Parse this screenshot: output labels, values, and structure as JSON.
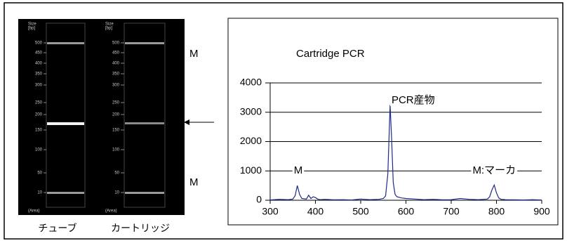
{
  "chart_data": {
    "type": "line",
    "title": "Cartridge PCR",
    "x": [
      300,
      320,
      340,
      350,
      355,
      360,
      365,
      370,
      380,
      385,
      390,
      395,
      400,
      405,
      410,
      420,
      440,
      460,
      480,
      500,
      520,
      540,
      550,
      555,
      560,
      565,
      568,
      572,
      576,
      580,
      590,
      600,
      620,
      640,
      660,
      680,
      700,
      720,
      740,
      760,
      780,
      785,
      790,
      795,
      800,
      805,
      810,
      820,
      840,
      860,
      880,
      900
    ],
    "series": [
      {
        "color": "#1f2a8a",
        "values": [
          10,
          30,
          20,
          40,
          150,
          500,
          200,
          60,
          40,
          170,
          60,
          120,
          90,
          40,
          20,
          30,
          15,
          20,
          10,
          40,
          20,
          30,
          60,
          150,
          900,
          3250,
          2200,
          600,
          200,
          120,
          80,
          60,
          40,
          20,
          30,
          15,
          20,
          60,
          30,
          20,
          40,
          120,
          350,
          520,
          250,
          80,
          30,
          20,
          15,
          10,
          20,
          10
        ]
      }
    ],
    "xlim": [
      300,
      900
    ],
    "xticks": [
      300,
      400,
      500,
      600,
      700,
      800,
      900
    ],
    "ylim": [
      0,
      4000
    ],
    "yticks": [
      0,
      1000,
      2000,
      3000,
      4000
    ],
    "grid": true,
    "annotations": [
      {
        "text": "PCR産物",
        "x": 616,
        "y": 3400,
        "color": "#e02020"
      },
      {
        "text": "M",
        "x": 362,
        "y": 1000,
        "color": "#000000"
      },
      {
        "text": "M:マーカ",
        "x": 795,
        "y": 1000,
        "color": "#000000"
      }
    ]
  },
  "gel": {
    "size_label": [
      "Size",
      "[bp]"
    ],
    "area_label": "(Area)",
    "ladder": [
      "500",
      "450",
      "400",
      "350",
      "300",
      "250",
      "200",
      "150",
      "100",
      "50",
      "10"
    ],
    "lanes": [
      "チューブ",
      "カートリッジ"
    ],
    "markers": [
      "M",
      "M"
    ]
  }
}
